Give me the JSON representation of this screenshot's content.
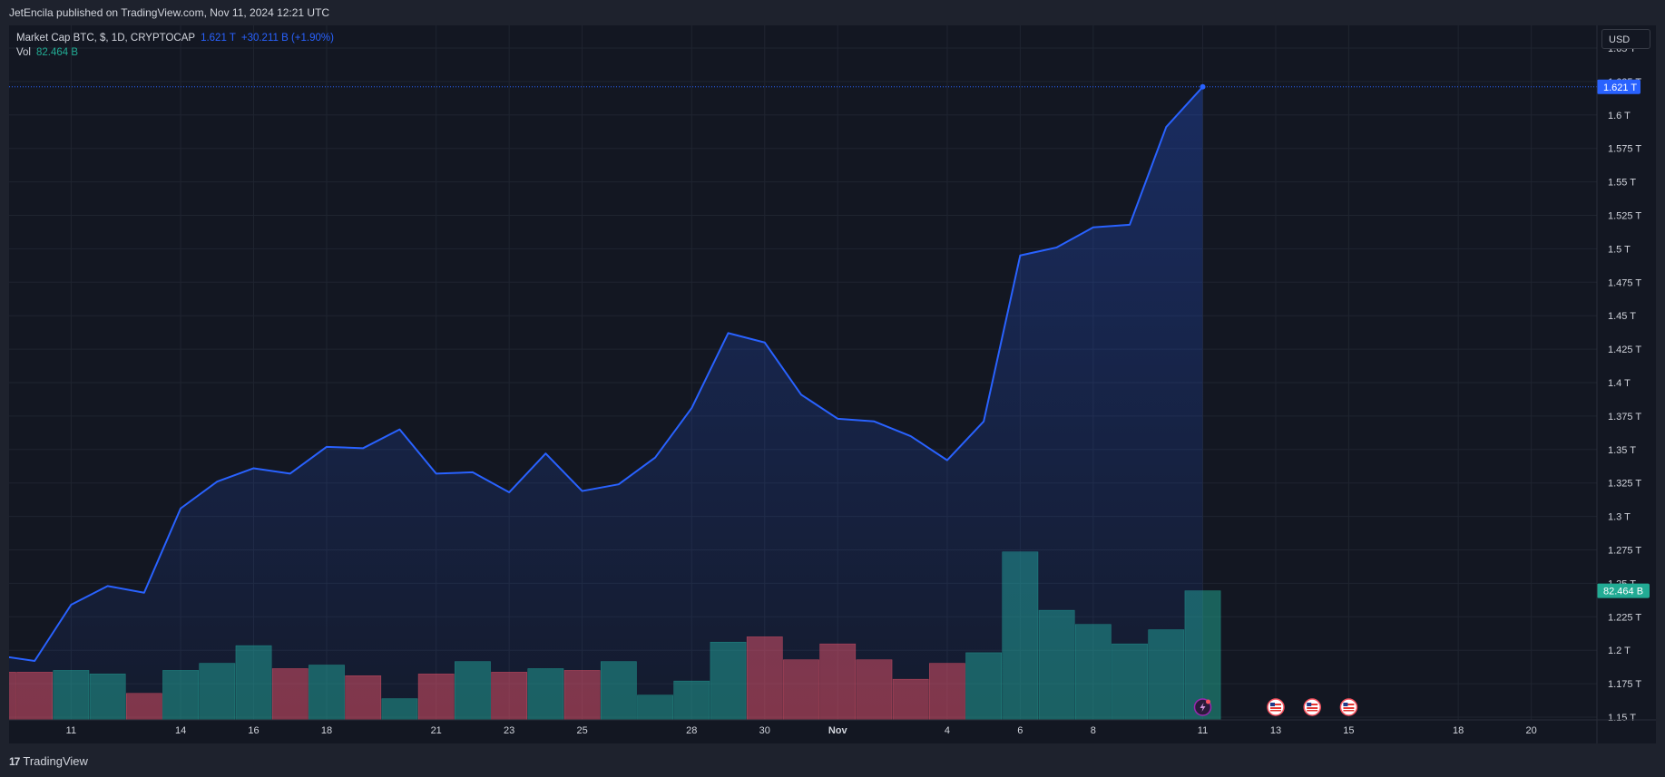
{
  "header": {
    "published": "JetEncila published on TradingView.com, Nov 11, 2024 12:21 UTC"
  },
  "legend": {
    "symbol": "Market Cap BTC, $, 1D, CRYPTOCAP",
    "value": "1.621 T",
    "change": "+30.211 B (+1.90%)",
    "vol_label": "Vol",
    "vol_value": "82.464 B"
  },
  "currency": "USD",
  "footer": {
    "brand": "TradingView"
  },
  "colors": {
    "line": "#2962ff",
    "up": "#22ab94",
    "down": "#f7525f",
    "bg": "#131722"
  },
  "chart_data": {
    "type": "area",
    "price_unit": "T",
    "y_ticks": [
      "1.15 T",
      "1.175 T",
      "1.2 T",
      "1.225 T",
      "1.25 T",
      "1.275 T",
      "1.3 T",
      "1.325 T",
      "1.35 T",
      "1.375 T",
      "1.4 T",
      "1.425 T",
      "1.45 T",
      "1.475 T",
      "1.5 T",
      "1.525 T",
      "1.55 T",
      "1.575 T",
      "1.6 T",
      "1.625 T",
      "1.65 T"
    ],
    "y_tick_values": [
      1.15,
      1.175,
      1.2,
      1.225,
      1.25,
      1.275,
      1.3,
      1.325,
      1.35,
      1.375,
      1.4,
      1.425,
      1.45,
      1.475,
      1.5,
      1.525,
      1.55,
      1.575,
      1.6,
      1.625,
      1.65
    ],
    "ylim": [
      1.15,
      1.65
    ],
    "x_ticks": [
      {
        "label": "11",
        "day": 2
      },
      {
        "label": "14",
        "day": 5
      },
      {
        "label": "16",
        "day": 7
      },
      {
        "label": "18",
        "day": 9
      },
      {
        "label": "21",
        "day": 12
      },
      {
        "label": "23",
        "day": 14
      },
      {
        "label": "25",
        "day": 16
      },
      {
        "label": "28",
        "day": 19
      },
      {
        "label": "30",
        "day": 21
      },
      {
        "label": "Nov",
        "day": 23
      },
      {
        "label": "4",
        "day": 26
      },
      {
        "label": "6",
        "day": 28
      },
      {
        "label": "8",
        "day": 30
      },
      {
        "label": "11",
        "day": 33
      },
      {
        "label": "13",
        "day": 35
      },
      {
        "label": "15",
        "day": 37
      },
      {
        "label": "18",
        "day": 40
      },
      {
        "label": "20",
        "day": 42
      }
    ],
    "x_range_days": [
      0.3,
      43.8
    ],
    "price_series": {
      "name": "Market Cap BTC",
      "days": [
        0,
        1,
        2,
        3,
        4,
        5,
        6,
        7,
        8,
        9,
        10,
        11,
        12,
        13,
        14,
        15,
        16,
        17,
        18,
        19,
        20,
        21,
        22,
        23,
        24,
        25,
        26,
        27,
        28,
        29,
        30,
        31,
        32,
        33
      ],
      "values": [
        1.196,
        1.192,
        1.234,
        1.248,
        1.243,
        1.306,
        1.326,
        1.336,
        1.332,
        1.352,
        1.351,
        1.365,
        1.332,
        1.333,
        1.318,
        1.347,
        1.319,
        1.324,
        1.344,
        1.381,
        1.437,
        1.43,
        1.391,
        1.373,
        1.371,
        1.36,
        1.342,
        1.371,
        1.495,
        1.501,
        1.516,
        1.518,
        1.591,
        1.621
      ]
    },
    "volume_series": {
      "name": "Vol",
      "days": [
        0,
        1,
        2,
        3,
        4,
        5,
        6,
        7,
        8,
        9,
        10,
        11,
        12,
        13,
        14,
        15,
        16,
        17,
        18,
        19,
        20,
        21,
        22,
        23,
        24,
        25,
        26,
        27,
        28,
        29,
        30,
        31,
        32,
        33
      ],
      "relative": [
        0.27,
        0.27,
        0.28,
        0.26,
        0.15,
        0.28,
        0.32,
        0.42,
        0.29,
        0.31,
        0.25,
        0.12,
        0.26,
        0.33,
        0.27,
        0.29,
        0.28,
        0.33,
        0.14,
        0.22,
        0.44,
        0.47,
        0.34,
        0.43,
        0.34,
        0.23,
        0.32,
        0.38,
        0.95,
        0.62,
        0.54,
        0.43,
        0.51,
        0.73
      ],
      "direction": [
        "down",
        "down",
        "up",
        "up",
        "down",
        "up",
        "up",
        "up",
        "down",
        "up",
        "down",
        "up",
        "down",
        "up",
        "down",
        "up",
        "down",
        "up",
        "up",
        "up",
        "up",
        "down",
        "down",
        "down",
        "down",
        "down",
        "down",
        "up",
        "up",
        "up",
        "up",
        "up",
        "up",
        "up"
      ]
    },
    "last_price_label": "1.621 T",
    "last_volume_label": "82.464 B",
    "events": [
      {
        "type": "crypto",
        "day": 33,
        "icon": "lightning-icon"
      },
      {
        "type": "economic",
        "day": 35,
        "icon": "us-flag-icon"
      },
      {
        "type": "economic",
        "day": 36,
        "icon": "us-flag-icon"
      },
      {
        "type": "economic",
        "day": 37,
        "icon": "us-flag-icon"
      }
    ]
  }
}
